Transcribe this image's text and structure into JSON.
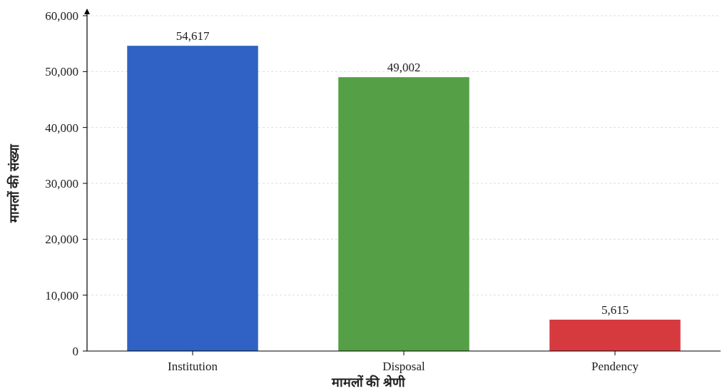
{
  "chart_data": {
    "type": "bar",
    "xlabel": "मामलों की श्रेणी",
    "ylabel": "मामलों की संख्या",
    "categories": [
      "Institution",
      "Disposal",
      "Pendency"
    ],
    "values": [
      54617,
      49002,
      5615
    ],
    "colors": [
      "#2f62c4",
      "#55a046",
      "#d63a3f"
    ],
    "ylim": [
      0,
      60000
    ],
    "yticks": [
      {
        "value": 0,
        "label": "0"
      },
      {
        "value": 10000,
        "label": "10,000"
      },
      {
        "value": 20000,
        "label": "20,000"
      },
      {
        "value": 30000,
        "label": "30,000"
      },
      {
        "value": 40000,
        "label": "40,000"
      },
      {
        "value": 50000,
        "label": "50,000"
      },
      {
        "value": 60000,
        "label": "60,000"
      }
    ],
    "value_labels": [
      "54,617",
      "49,002",
      "5,615"
    ],
    "grid": "y"
  }
}
